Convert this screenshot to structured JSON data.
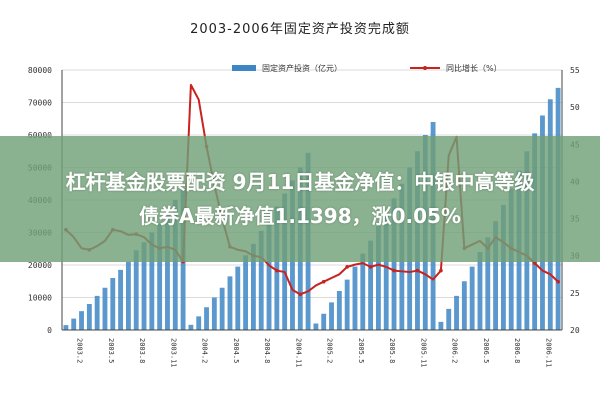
{
  "colors": {
    "bar": "#3d86c6",
    "line": "#c8231f",
    "axis": "#444444",
    "grid": "#cfcfcf",
    "banner": "#70a078"
  },
  "banner": {
    "line1": "杠杆基金股票配资 9月11日基金净值：中银中高等级",
    "line2": "债券A最新净值1.1398，涨0.05%"
  },
  "chart_data": {
    "type": "bar",
    "title": "2003-2006年固定资产投资完成额",
    "legend": [
      "固定资产投资（亿元）",
      "同比增长（%）"
    ],
    "legend_placement": "top",
    "grid": true,
    "xlabels": [
      "2003.2",
      "2003.5",
      "2003.8",
      "2003.11",
      "2004.2",
      "2004.5",
      "2004.8",
      "2004.11",
      "2005.2",
      "2005.5",
      "2005.8",
      "2005.11",
      "2006.2",
      "2006.5",
      "2006.8",
      "2006.11"
    ],
    "y_left": {
      "ylim": [
        0,
        80000
      ],
      "ticks": [
        "0",
        "10000",
        "20000",
        "30000",
        "40000",
        "50000",
        "60000",
        "70000",
        "80000"
      ]
    },
    "y_right": {
      "ylim": [
        20,
        55
      ],
      "ticks": [
        "20",
        "25",
        "30",
        "35",
        "40",
        "45",
        "50",
        "55"
      ]
    },
    "series": [
      {
        "name": "固定资产投资（亿元）",
        "type": "bar",
        "axis": "left",
        "values": [
          1500,
          3500,
          5800,
          8000,
          10500,
          13000,
          16000,
          18500,
          21000,
          24500,
          27000,
          30000,
          33000,
          36000,
          40000,
          43500,
          1600,
          4200,
          7000,
          10000,
          13000,
          16500,
          19500,
          23000,
          26500,
          30500,
          34000,
          38000,
          42000,
          46000,
          50000,
          54500,
          2000,
          5000,
          8500,
          12000,
          15500,
          19500,
          23500,
          27500,
          32000,
          36500,
          40500,
          45000,
          50000,
          55000,
          60000,
          64000,
          2500,
          6500,
          10500,
          15000,
          19500,
          24000,
          28500,
          33500,
          38500,
          43500,
          49000,
          55000,
          60500,
          66000,
          71000,
          74500
        ]
      },
      {
        "name": "同比增长（%）",
        "type": "line",
        "axis": "right",
        "values": [
          33.5,
          32.5,
          31.0,
          30.8,
          31.3,
          32.0,
          33.5,
          33.3,
          32.8,
          32.9,
          32.5,
          31.5,
          31.0,
          31.2,
          30.8,
          29.2,
          53.0,
          51.0,
          44.7,
          39.5,
          35.0,
          31.2,
          30.8,
          30.6,
          30.0,
          29.8,
          28.7,
          28.0,
          27.8,
          25.4,
          24.8,
          25.2,
          26.0,
          26.5,
          27.0,
          27.5,
          28.5,
          28.8,
          29.0,
          28.5,
          28.8,
          28.5,
          28.0,
          27.9,
          27.8,
          28.0,
          27.5,
          26.8,
          28.0,
          43.5,
          46.0,
          31.0,
          31.5,
          32.0,
          31.0,
          32.5,
          31.8,
          31.0,
          30.5,
          30.0,
          29.0,
          28.0,
          27.5,
          26.5
        ]
      }
    ]
  }
}
